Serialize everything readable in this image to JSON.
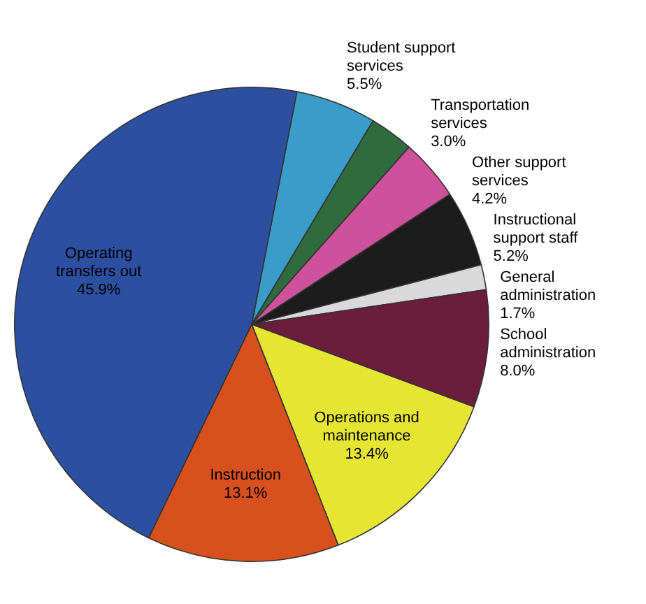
{
  "chart_data": {
    "type": "pie",
    "categories": [
      "Student support services",
      "Transportation services",
      "Other support services",
      "Instructional support staff",
      "General administration",
      "School administration",
      "Operations and maintenance",
      "Instruction",
      "Operating transfers out"
    ],
    "values": [
      5.5,
      3.0,
      4.2,
      5.2,
      1.7,
      8.0,
      13.4,
      13.1,
      45.9
    ],
    "value_labels": [
      "5.5%",
      "3.0%",
      "4.2%",
      "5.2%",
      "1.7%",
      "8.0%",
      "13.4%",
      "13.1%",
      "45.9%"
    ],
    "colors": [
      "#3a9cc8",
      "#2f6b3c",
      "#d0519b",
      "#1c1c1c",
      "#d9d9d9",
      "#6b1d3c",
      "#e6e632",
      "#d8501e",
      "#2c4fa0"
    ],
    "legend": false
  }
}
